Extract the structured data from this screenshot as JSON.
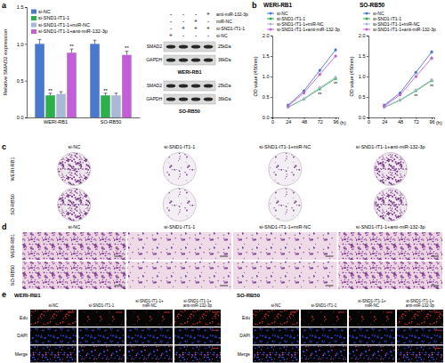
{
  "chart_data": [
    {
      "type": "bar",
      "y_label": "Relative SMAD2 expression",
      "categories": [
        "WERI-RB1",
        "SO-RB50"
      ],
      "series": [
        {
          "name": "si-NC",
          "color": "#4a78cf",
          "values": [
            1.0,
            1.0
          ],
          "errors": [
            0.06,
            0.05
          ]
        },
        {
          "name": "si-SND1-IT1-1",
          "color": "#2bb04a",
          "values": [
            0.3,
            0.3
          ],
          "errors": [
            0.03,
            0.03
          ]
        },
        {
          "name": "si-SND1-IT1-1+miR-NC",
          "color": "#a9b8d6",
          "values": [
            0.32,
            0.3
          ],
          "errors": [
            0.03,
            0.03
          ]
        },
        {
          "name": "si-SND1-IT1-1+anti-miR-132-3p",
          "color": "#c25fd6",
          "values": [
            0.88,
            0.85
          ],
          "errors": [
            0.05,
            0.05
          ]
        }
      ],
      "ylim": [
        0,
        1.5
      ],
      "yticks": [
        {
          "value": 0,
          "label": "0.0"
        },
        {
          "value": 0.5,
          "label": "0.5"
        },
        {
          "value": 1,
          "label": "1.0"
        },
        {
          "value": 1.5,
          "label": "1.5"
        }
      ],
      "legend": "top-left",
      "annotations": [
        {
          "series": 1,
          "category": 0,
          "text": "**"
        },
        {
          "series": 3,
          "category": 0,
          "text": "**"
        },
        {
          "series": 1,
          "category": 1,
          "text": "**"
        },
        {
          "series": 3,
          "category": 1,
          "text": "**"
        }
      ]
    },
    {
      "type": "line",
      "title": "WERI-RB1",
      "y_label": "OD value (450nm)",
      "x_label": "(h)",
      "x": [
        24,
        48,
        72,
        96
      ],
      "series": [
        {
          "name": "si-NC",
          "color": "#4a78cf",
          "values": [
            0.3,
            0.65,
            1.15,
            1.65
          ],
          "errors": [
            0.03,
            0.03,
            0.04,
            0.05
          ]
        },
        {
          "name": "si-SND1-IT1-1",
          "color": "#2bb04a",
          "values": [
            0.25,
            0.45,
            0.7,
            0.95
          ],
          "errors": [
            0.03,
            0.03,
            0.03,
            0.04
          ]
        },
        {
          "name": "si-SND1-IT1-1+miR-NC",
          "color": "#a9b8d6",
          "values": [
            0.25,
            0.46,
            0.73,
            0.98
          ],
          "errors": [
            0.03,
            0.03,
            0.03,
            0.04
          ]
        },
        {
          "name": "si-SND1-IT1-1+anti-miR-132-3p",
          "color": "#c25fd6",
          "values": [
            0.28,
            0.6,
            1.05,
            1.5
          ],
          "errors": [
            0.03,
            0.03,
            0.04,
            0.05
          ]
        }
      ],
      "xlim": [
        0,
        100
      ],
      "xticks": [
        0,
        24,
        48,
        72,
        96
      ],
      "ylim": [
        0,
        2
      ],
      "yticks": [
        {
          "value": 0,
          "label": "0.0"
        },
        {
          "value": 0.5,
          "label": "0.5"
        },
        {
          "value": 1,
          "label": "1.0"
        },
        {
          "value": 1.5,
          "label": "1.5"
        },
        {
          "value": 2,
          "label": "2.0"
        }
      ],
      "marker": "circle",
      "legend": "top",
      "annotations": [
        {
          "series": 1,
          "index": 2,
          "text": "**"
        },
        {
          "series": 1,
          "index": 3,
          "text": "**"
        }
      ]
    },
    {
      "type": "line",
      "title": "SO-RB50",
      "y_label": "OD value (450nm)",
      "x_label": "(h)",
      "x": [
        24,
        48,
        72,
        96
      ],
      "series": [
        {
          "name": "si-NC",
          "color": "#4a78cf",
          "values": [
            0.3,
            0.6,
            1.1,
            1.6
          ],
          "errors": [
            0.03,
            0.03,
            0.04,
            0.05
          ]
        },
        {
          "name": "si-SND1-IT1-1",
          "color": "#2bb04a",
          "values": [
            0.25,
            0.42,
            0.65,
            0.9
          ],
          "errors": [
            0.03,
            0.03,
            0.03,
            0.04
          ]
        },
        {
          "name": "si-SND1-IT1-1+miR-NC",
          "color": "#a9b8d6",
          "values": [
            0.25,
            0.43,
            0.67,
            0.92
          ],
          "errors": [
            0.03,
            0.03,
            0.03,
            0.04
          ]
        },
        {
          "name": "si-SND1-IT1-1+anti-miR-132-3p",
          "color": "#c25fd6",
          "values": [
            0.28,
            0.55,
            1.0,
            1.45
          ],
          "errors": [
            0.03,
            0.03,
            0.04,
            0.05
          ]
        }
      ],
      "xlim": [
        0,
        100
      ],
      "xticks": [
        0,
        24,
        48,
        72,
        96
      ],
      "ylim": [
        0,
        2
      ],
      "yticks": [
        {
          "value": 0,
          "label": "0.0"
        },
        {
          "value": 0.5,
          "label": "0.5"
        },
        {
          "value": 1,
          "label": "1.0"
        },
        {
          "value": 1.5,
          "label": "1.5"
        },
        {
          "value": 2,
          "label": "2.0"
        }
      ],
      "marker": "circle",
      "legend": "top",
      "annotations": [
        {
          "series": 1,
          "index": 2,
          "text": "**"
        },
        {
          "series": 1,
          "index": 3,
          "text": "**"
        }
      ]
    }
  ],
  "panel_labels": [
    "a",
    "b",
    "c",
    "d",
    "e"
  ],
  "western_blot": {
    "rows": [
      {
        "label": "anti-miR-132-3p",
        "lanes": [
          "-",
          "-",
          "-",
          "+"
        ]
      },
      {
        "label": "miR-NC",
        "lanes": [
          "-",
          "-",
          "+",
          "-"
        ]
      },
      {
        "label": "si-SND1-IT1-1",
        "lanes": [
          "-",
          "+",
          "+",
          "+"
        ]
      },
      {
        "label": "si-NC",
        "lanes": [
          "+",
          "-",
          "-",
          "-"
        ]
      }
    ],
    "cells": [
      {
        "name": "WERI-RB1",
        "blots": [
          {
            "protein": "SMAD2",
            "size": "25kDa"
          },
          {
            "protein": "GAPDH",
            "size": "36kDa"
          }
        ]
      },
      {
        "name": "SO-RB50",
        "blots": [
          {
            "protein": "SMAD2",
            "size": "25kDa"
          },
          {
            "protein": "GAPDH",
            "size": "36kDa"
          }
        ]
      }
    ]
  },
  "colony": {
    "columns": [
      "si-NC",
      "si-SND1-IT1-1",
      "si-SND1-IT1-1+miR-NC",
      "si-SND1-IT1-1+anti-miR-132-3p"
    ],
    "rows": [
      "WERI-RB1",
      "SO-RB50"
    ]
  },
  "transwell": {
    "columns": [
      "si-NC",
      "si-SND1-IT1-1",
      "si-SND1-IT1-1+miR-NC",
      "si-SND1-IT1-1+anti-miR-132-3p"
    ],
    "rows": [
      "WERI-RB1",
      "SO-RB50"
    ]
  },
  "edu": {
    "blocks": [
      {
        "title": "WERI-RB1",
        "columns": [
          [
            "si-NC"
          ],
          [
            "si-SND1-IT1-1"
          ],
          [
            "si-SND1-IT1-1+",
            "miR-NC"
          ],
          [
            "si-SND1-IT1-1+",
            "anti-miR-132-3p"
          ]
        ],
        "rows": [
          "Edu",
          "DAPI",
          "Merge"
        ]
      },
      {
        "title": "SO-RB50",
        "columns": [
          [
            "si-NC"
          ],
          [
            "si-SND1-IT1-1"
          ],
          [
            "si-SND1-IT1-1+",
            "miR-NC"
          ],
          [
            "si-SND1-IT1-1+",
            "anti-miR-132-3p"
          ]
        ],
        "rows": [
          "Edu",
          "DAPI",
          "Merge"
        ]
      }
    ]
  }
}
